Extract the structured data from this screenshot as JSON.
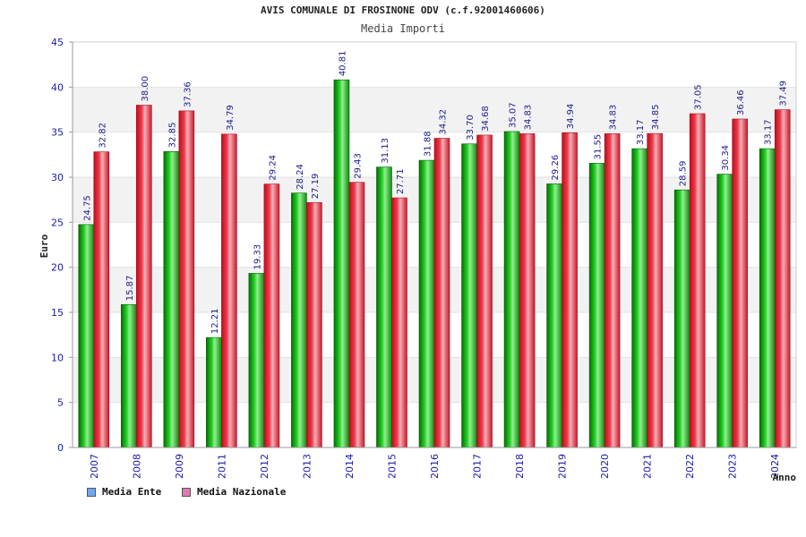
{
  "chart_data": {
    "type": "bar",
    "title": "AVIS COMUNALE DI FROSINONE ODV (c.f.92001460606)",
    "subtitle": "Media Importi",
    "xlabel": "Anno",
    "ylabel": "Euro",
    "ylim": [
      0,
      45
    ],
    "ytick_step": 5,
    "categories": [
      "2007",
      "2008",
      "2009",
      "2011",
      "2012",
      "2013",
      "2014",
      "2015",
      "2016",
      "2017",
      "2018",
      "2019",
      "2020",
      "2021",
      "2022",
      "2023",
      "2024"
    ],
    "series": [
      {
        "name": "Media Ente",
        "legend_color": "#6fa8f0",
        "color": "#1fae1f",
        "values": [
          24.75,
          15.87,
          32.85,
          12.21,
          19.33,
          28.24,
          40.81,
          31.13,
          31.88,
          33.7,
          35.07,
          29.26,
          31.55,
          33.17,
          28.59,
          30.34,
          33.17
        ],
        "labels": [
          "24.75",
          "15.87",
          "32.85",
          "12.21",
          "19.33",
          "28.24",
          "40.81",
          "31.13",
          "31.88",
          "33.70",
          "35.07",
          "29.26",
          "31.55",
          "33.17",
          "28.59",
          "30.34",
          "33.17"
        ]
      },
      {
        "name": "Media Nazionale",
        "legend_color": "#e27ab0",
        "color": "#e8283a",
        "values": [
          32.82,
          38.0,
          37.36,
          34.79,
          29.24,
          27.19,
          29.43,
          27.71,
          34.32,
          34.68,
          34.83,
          34.94,
          34.83,
          34.85,
          37.05,
          36.46,
          37.49
        ],
        "labels": [
          "32.82",
          "38.00",
          "37.36",
          "34.79",
          "29.24",
          "27.19",
          "29.43",
          "27.71",
          "34.32",
          "34.68",
          "34.83",
          "34.94",
          "34.83",
          "34.85",
          "37.05",
          "36.46",
          "37.49"
        ]
      }
    ]
  }
}
